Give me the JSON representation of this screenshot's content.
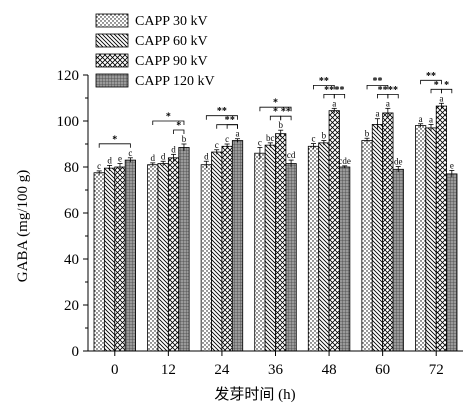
{
  "chart_data": {
    "type": "bar",
    "xlabel": "发芽时间 (h)",
    "ylabel": "GABA (mg/100 g)",
    "ylim": [
      0,
      120
    ],
    "yticks": [
      0,
      20,
      40,
      60,
      80,
      100,
      120
    ],
    "categories": [
      "0",
      "12",
      "24",
      "36",
      "48",
      "60",
      "72"
    ],
    "legend_position": "top-left",
    "series": [
      {
        "name": "CAPP 30 kV",
        "pattern": "dots",
        "values": [
          77.5,
          81,
          81,
          86,
          89,
          91.5,
          98
        ],
        "errors": [
          0.8,
          0.8,
          1.5,
          2.5,
          1.2,
          1.0,
          0.8
        ],
        "letters": [
          "c",
          "d",
          "d",
          "c",
          "c",
          "b",
          "a"
        ]
      },
      {
        "name": "CAPP 60 kV",
        "pattern": "hatch",
        "values": [
          79.5,
          81.5,
          86.5,
          89.5,
          90.5,
          98.5,
          97
        ],
        "errors": [
          1.2,
          1.0,
          1.0,
          1.0,
          1.0,
          2.5,
          1.5
        ],
        "letters": [
          "d",
          "d",
          "c",
          "bc",
          "b",
          "a",
          "a"
        ]
      },
      {
        "name": "CAPP 90 kV",
        "pattern": "zigzag",
        "values": [
          80,
          84,
          89,
          94.5,
          104.5,
          103.5,
          106.5
        ],
        "errors": [
          1.5,
          1.5,
          1.0,
          1.5,
          1.0,
          2.0,
          1.2
        ],
        "letters": [
          "e",
          "d",
          "c",
          "b",
          "a",
          "a",
          "a"
        ]
      },
      {
        "name": "CAPP 120 kV",
        "pattern": "grid",
        "values": [
          83,
          88.5,
          91.5,
          81.5,
          80,
          79,
          77
        ],
        "errors": [
          1.0,
          1.5,
          0.8,
          1.5,
          0.5,
          1.2,
          1.5
        ],
        "letters": [
          "c",
          "b",
          "a",
          "cd",
          "cde",
          "de",
          "e"
        ]
      }
    ],
    "annotations": [
      {
        "label": "*",
        "group": 0,
        "from": 0,
        "to": 3,
        "level": 0
      },
      {
        "label": "*",
        "group": 1,
        "from": 0,
        "to": 3,
        "level": 1
      },
      {
        "label": "*",
        "group": 1,
        "from": 2,
        "to": 3,
        "level": 0
      },
      {
        "label": "**",
        "group": 2,
        "from": 0,
        "to": 3,
        "level": 1
      },
      {
        "label": "*",
        "group": 2,
        "from": 1,
        "to": 3,
        "level": 0
      },
      {
        "label": "*",
        "group": 2,
        "from": 2,
        "to": 3,
        "level": 0
      },
      {
        "label": "*",
        "group": 3,
        "from": 0,
        "to": 3,
        "level": 1
      },
      {
        "label": "*",
        "group": 3,
        "from": 1,
        "to": 2,
        "level": 0
      },
      {
        "label": "**",
        "group": 3,
        "from": 2,
        "to": 3,
        "level": 0
      },
      {
        "label": "**",
        "group": 4,
        "from": 0,
        "to": 2,
        "level": 1
      },
      {
        "label": "**",
        "group": 4,
        "from": 1,
        "to": 2,
        "level": 0
      },
      {
        "label": "**",
        "group": 4,
        "from": 2,
        "to": 3,
        "level": 0
      },
      {
        "label": "**",
        "group": 5,
        "from": 0,
        "to": 2,
        "level": 1
      },
      {
        "label": "**",
        "group": 5,
        "from": 1,
        "to": 2,
        "level": 0
      },
      {
        "label": "**",
        "group": 5,
        "from": 2,
        "to": 3,
        "level": 0
      },
      {
        "label": "**",
        "group": 6,
        "from": 0,
        "to": 2,
        "level": 1
      },
      {
        "label": "*",
        "group": 6,
        "from": 1,
        "to": 2,
        "level": 0
      },
      {
        "label": "*",
        "group": 6,
        "from": 2,
        "to": 3,
        "level": 0
      }
    ]
  }
}
